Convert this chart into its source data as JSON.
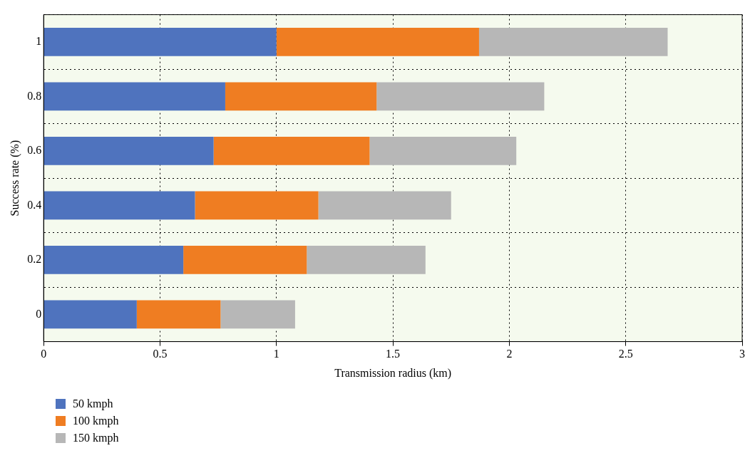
{
  "chart_data": {
    "type": "bar",
    "orientation": "horizontal",
    "stacked": true,
    "xlabel": "Transmission radius (km)",
    "ylabel": "Success rate (%)",
    "categories": [
      "1",
      "0.8",
      "0.6",
      "0.4",
      "0.2",
      "0"
    ],
    "series": [
      {
        "name": "50 kmph",
        "color": "#4f73be",
        "values": [
          1.0,
          0.78,
          0.73,
          0.65,
          0.6,
          0.4
        ]
      },
      {
        "name": "100 kmph",
        "color": "#ef7d22",
        "values": [
          0.87,
          0.65,
          0.67,
          0.53,
          0.53,
          0.36
        ]
      },
      {
        "name": "150 kmph",
        "color": "#b7b7b7",
        "values": [
          0.81,
          0.72,
          0.63,
          0.57,
          0.51,
          0.32
        ]
      }
    ],
    "xlim": [
      0,
      3
    ],
    "xticks": [
      0,
      0.5,
      1,
      1.5,
      2,
      2.5,
      3
    ],
    "grid": true,
    "legend": "bottom left"
  }
}
